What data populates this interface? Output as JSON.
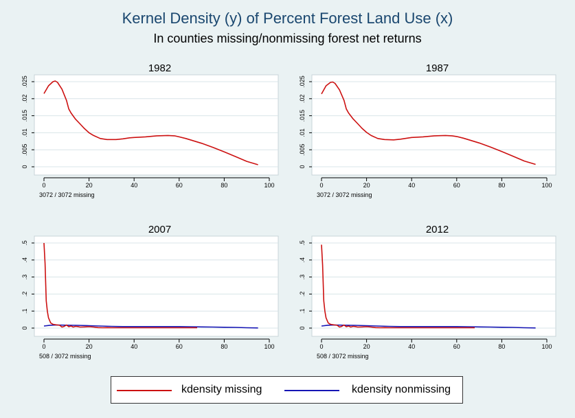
{
  "title": "Kernel Density (y) of Percent Forest Land Use (x)",
  "subtitle": "In counties missing/nonmissing forest net returns",
  "colors": {
    "missing": "#cc1010",
    "nonmissing": "#1414b4",
    "background": "#eaf2f3",
    "grid": "#d8e4e8"
  },
  "legend": {
    "missing": "kdensity missing",
    "nonmissing": "kdensity nonmissing"
  },
  "chart_data": [
    {
      "type": "line",
      "title": "1982",
      "note": "3072 / 3072 missing",
      "xlim": [
        0,
        100
      ],
      "ylim": [
        0,
        0.025
      ],
      "xticks": [
        0,
        20,
        40,
        60,
        80,
        100
      ],
      "yticks": [
        0,
        0.005,
        0.01,
        0.015,
        0.02,
        0.025
      ],
      "ytick_labels": [
        "0",
        ".005",
        ".01",
        ".015",
        ".02",
        ".025"
      ],
      "grid": true,
      "series": [
        {
          "name": "kdensity missing",
          "x": [
            0,
            2,
            4,
            5,
            6,
            8,
            10,
            11,
            12,
            14,
            16,
            18,
            20,
            22,
            25,
            28,
            32,
            35,
            38,
            40,
            45,
            50,
            55,
            58,
            60,
            63,
            66,
            70,
            75,
            80,
            85,
            90,
            95
          ],
          "y": [
            0.0215,
            0.0238,
            0.025,
            0.0252,
            0.0248,
            0.0228,
            0.0195,
            0.017,
            0.0158,
            0.014,
            0.0126,
            0.0112,
            0.01,
            0.0092,
            0.0083,
            0.008,
            0.008,
            0.0082,
            0.0085,
            0.0086,
            0.0088,
            0.0091,
            0.0092,
            0.0091,
            0.0088,
            0.0083,
            0.0077,
            0.0069,
            0.0057,
            0.0044,
            0.003,
            0.0016,
            0.0006
          ]
        }
      ]
    },
    {
      "type": "line",
      "title": "1987",
      "note": "3072 / 3072 missing",
      "xlim": [
        0,
        100
      ],
      "ylim": [
        0,
        0.025
      ],
      "xticks": [
        0,
        20,
        40,
        60,
        80,
        100
      ],
      "yticks": [
        0,
        0.005,
        0.01,
        0.015,
        0.02,
        0.025
      ],
      "ytick_labels": [
        "0",
        ".005",
        ".01",
        ".015",
        ".02",
        ".025"
      ],
      "grid": true,
      "series": [
        {
          "name": "kdensity missing",
          "x": [
            0,
            2,
            4,
            5,
            6,
            8,
            10,
            11,
            12,
            14,
            16,
            18,
            20,
            22,
            25,
            28,
            32,
            35,
            38,
            40,
            45,
            50,
            55,
            58,
            60,
            63,
            66,
            70,
            75,
            80,
            85,
            90,
            95
          ],
          "y": [
            0.0214,
            0.0238,
            0.0248,
            0.0249,
            0.0245,
            0.0226,
            0.0195,
            0.017,
            0.0158,
            0.0141,
            0.0127,
            0.0113,
            0.0101,
            0.0092,
            0.0083,
            0.008,
            0.0079,
            0.0081,
            0.0084,
            0.0086,
            0.0088,
            0.0091,
            0.0092,
            0.0091,
            0.0089,
            0.0084,
            0.0078,
            0.007,
            0.0058,
            0.0045,
            0.0031,
            0.0017,
            0.0007
          ]
        }
      ]
    },
    {
      "type": "line",
      "title": "2007",
      "note": "508 / 3072 missing",
      "xlim": [
        0,
        100
      ],
      "ylim": [
        0,
        0.5
      ],
      "xticks": [
        0,
        20,
        40,
        60,
        80,
        100
      ],
      "yticks": [
        0,
        0.1,
        0.2,
        0.3,
        0.4,
        0.5
      ],
      "ytick_labels": [
        "0",
        ".1",
        ".2",
        ".3",
        ".4",
        ".5"
      ],
      "grid": true,
      "series": [
        {
          "name": "kdensity missing",
          "x": [
            0,
            0.5,
            1,
            1.5,
            2,
            3,
            4,
            5,
            6,
            7,
            8,
            9,
            10,
            11,
            12,
            13,
            14,
            15,
            16,
            18,
            20,
            22,
            24,
            26,
            28,
            30,
            35,
            40,
            45,
            50,
            55,
            60,
            65,
            68
          ],
          "y": [
            0.5,
            0.38,
            0.16,
            0.1,
            0.06,
            0.03,
            0.022,
            0.02,
            0.018,
            0.016,
            0.006,
            0.01,
            0.018,
            0.008,
            0.012,
            0.006,
            0.01,
            0.009,
            0.006,
            0.007,
            0.008,
            0.006,
            0.003,
            0.002,
            0.003,
            0.002,
            0.002,
            0.002,
            0.002,
            0.002,
            0.002,
            0.002,
            0.002,
            0.002
          ]
        },
        {
          "name": "kdensity nonmissing",
          "x": [
            0,
            3,
            6,
            10,
            15,
            20,
            25,
            30,
            35,
            40,
            45,
            50,
            55,
            60,
            65,
            70,
            75,
            80,
            85,
            90,
            95
          ],
          "y": [
            0.012,
            0.017,
            0.018,
            0.017,
            0.016,
            0.014,
            0.012,
            0.01,
            0.009,
            0.009,
            0.009,
            0.009,
            0.009,
            0.009,
            0.008,
            0.007,
            0.006,
            0.005,
            0.004,
            0.002,
            0.001
          ]
        }
      ]
    },
    {
      "type": "line",
      "title": "2012",
      "note": "508 / 3072 missing",
      "xlim": [
        0,
        100
      ],
      "ylim": [
        0,
        0.5
      ],
      "xticks": [
        0,
        20,
        40,
        60,
        80,
        100
      ],
      "yticks": [
        0,
        0.1,
        0.2,
        0.3,
        0.4,
        0.5
      ],
      "ytick_labels": [
        "0",
        ".1",
        ".2",
        ".3",
        ".4",
        ".5"
      ],
      "grid": true,
      "series": [
        {
          "name": "kdensity missing",
          "x": [
            0,
            0.5,
            1,
            1.5,
            2,
            3,
            4,
            5,
            6,
            7,
            8,
            9,
            10,
            11,
            12,
            13,
            14,
            15,
            16,
            18,
            20,
            22,
            24,
            26,
            28,
            30,
            35,
            40,
            45,
            50,
            55,
            60,
            65,
            68
          ],
          "y": [
            0.49,
            0.37,
            0.16,
            0.1,
            0.06,
            0.03,
            0.022,
            0.02,
            0.018,
            0.016,
            0.006,
            0.01,
            0.018,
            0.008,
            0.012,
            0.006,
            0.01,
            0.009,
            0.006,
            0.007,
            0.008,
            0.006,
            0.003,
            0.002,
            0.003,
            0.002,
            0.002,
            0.002,
            0.002,
            0.002,
            0.002,
            0.002,
            0.002,
            0.002
          ]
        },
        {
          "name": "kdensity nonmissing",
          "x": [
            0,
            3,
            6,
            10,
            15,
            20,
            25,
            30,
            35,
            40,
            45,
            50,
            55,
            60,
            65,
            70,
            75,
            80,
            85,
            90,
            95
          ],
          "y": [
            0.012,
            0.017,
            0.018,
            0.017,
            0.016,
            0.014,
            0.012,
            0.01,
            0.009,
            0.009,
            0.009,
            0.009,
            0.009,
            0.009,
            0.008,
            0.007,
            0.006,
            0.005,
            0.004,
            0.002,
            0.001
          ]
        }
      ]
    }
  ]
}
